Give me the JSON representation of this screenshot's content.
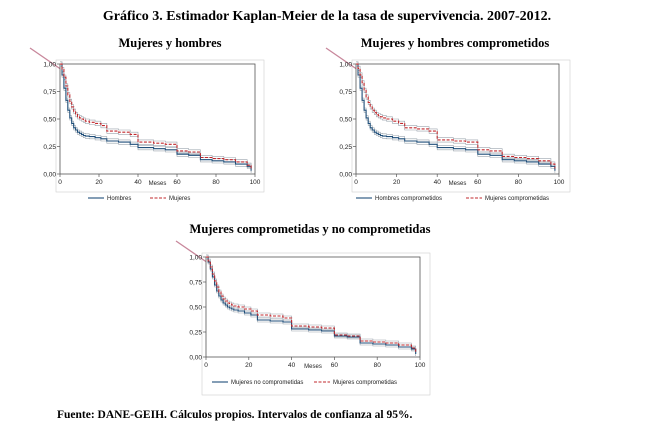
{
  "page": {
    "title": "Gráfico 3. Estimador Kaplan-Meier de la tasa de supervivencia. 2007-2012.",
    "source": "Fuente: DANE-GEIH. Cálculos propios. Intervalos de confianza al 95%."
  },
  "colors": {
    "series1": "#1f4e79",
    "series2": "#c0282d",
    "band": "#9aa4ad",
    "frame": "#555555",
    "arrow": "#c8879b"
  },
  "chart_data": [
    {
      "type": "line",
      "title": "Mujeres y hombres",
      "xlabel": "Meses",
      "ylabel": "",
      "xlim": [
        0,
        100
      ],
      "ylim": [
        0,
        1
      ],
      "xticks": [
        0,
        20,
        40,
        60,
        80,
        100
      ],
      "xtick_labels": [
        "0",
        "20",
        "40",
        "60",
        "80",
        "100"
      ],
      "yticks": [
        0,
        0.25,
        0.5,
        0.75,
        1
      ],
      "ytick_labels": [
        "0,00",
        "0,25",
        "0,50",
        "0,75",
        "1,00"
      ],
      "legend": "bottom",
      "series": [
        {
          "name": "Hombres",
          "style": "solid",
          "x": [
            0,
            1,
            2,
            3,
            4,
            5,
            6,
            7,
            8,
            9,
            10,
            11,
            12,
            13,
            15,
            18,
            21,
            24,
            30,
            36,
            40,
            48,
            54,
            60,
            66,
            72,
            78,
            84,
            90,
            96,
            98
          ],
          "y": [
            1.0,
            0.9,
            0.78,
            0.67,
            0.58,
            0.51,
            0.46,
            0.42,
            0.4,
            0.38,
            0.37,
            0.36,
            0.35,
            0.345,
            0.34,
            0.33,
            0.32,
            0.3,
            0.29,
            0.27,
            0.24,
            0.23,
            0.22,
            0.18,
            0.17,
            0.13,
            0.12,
            0.11,
            0.09,
            0.07,
            0.03
          ]
        },
        {
          "name": "Mujeres",
          "style": "dashed",
          "x": [
            0,
            1,
            2,
            3,
            4,
            5,
            6,
            7,
            8,
            9,
            10,
            11,
            12,
            13,
            15,
            18,
            21,
            24,
            30,
            36,
            40,
            48,
            54,
            60,
            66,
            72,
            78,
            84,
            90,
            96,
            98
          ],
          "y": [
            1.0,
            0.95,
            0.88,
            0.8,
            0.72,
            0.66,
            0.61,
            0.57,
            0.54,
            0.52,
            0.51,
            0.5,
            0.49,
            0.48,
            0.47,
            0.46,
            0.44,
            0.39,
            0.38,
            0.36,
            0.29,
            0.28,
            0.27,
            0.21,
            0.2,
            0.15,
            0.14,
            0.13,
            0.11,
            0.08,
            0.04
          ]
        }
      ]
    },
    {
      "type": "line",
      "title": "Mujeres y hombres comprometidos",
      "xlabel": "Meses",
      "ylabel": "",
      "xlim": [
        0,
        100
      ],
      "ylim": [
        0,
        1
      ],
      "xticks": [
        0,
        20,
        40,
        60,
        80,
        100
      ],
      "xtick_labels": [
        "0",
        "20",
        "40",
        "60",
        "80",
        "100"
      ],
      "yticks": [
        0,
        0.25,
        0.5,
        0.75,
        1
      ],
      "ytick_labels": [
        "0,00",
        "0,25",
        "0,50",
        "0,75",
        "1,00"
      ],
      "legend": "bottom",
      "series": [
        {
          "name": "Hombres comprometidos",
          "style": "solid",
          "x": [
            0,
            1,
            2,
            3,
            4,
            5,
            6,
            7,
            8,
            9,
            10,
            11,
            12,
            13,
            15,
            18,
            21,
            24,
            30,
            36,
            40,
            48,
            54,
            60,
            66,
            72,
            78,
            84,
            90,
            96,
            98
          ],
          "y": [
            1.0,
            0.9,
            0.78,
            0.67,
            0.58,
            0.51,
            0.46,
            0.42,
            0.4,
            0.38,
            0.37,
            0.36,
            0.35,
            0.345,
            0.34,
            0.33,
            0.32,
            0.3,
            0.29,
            0.27,
            0.24,
            0.23,
            0.22,
            0.18,
            0.17,
            0.13,
            0.12,
            0.11,
            0.09,
            0.07,
            0.03
          ]
        },
        {
          "name": "Mujeres comprometidas",
          "style": "dashed",
          "x": [
            0,
            1,
            2,
            3,
            4,
            5,
            6,
            7,
            8,
            9,
            10,
            11,
            12,
            13,
            15,
            18,
            21,
            24,
            30,
            36,
            40,
            48,
            54,
            60,
            66,
            72,
            78,
            84,
            90,
            96,
            98
          ],
          "y": [
            1.0,
            0.96,
            0.9,
            0.83,
            0.76,
            0.7,
            0.65,
            0.61,
            0.58,
            0.56,
            0.54,
            0.53,
            0.52,
            0.51,
            0.5,
            0.48,
            0.46,
            0.42,
            0.41,
            0.39,
            0.31,
            0.3,
            0.29,
            0.22,
            0.21,
            0.16,
            0.15,
            0.14,
            0.12,
            0.09,
            0.05
          ]
        }
      ]
    },
    {
      "type": "line",
      "title": "Mujeres comprometidas y no comprometidas",
      "xlabel": "Meses",
      "ylabel": "",
      "xlim": [
        0,
        100
      ],
      "ylim": [
        0,
        1
      ],
      "xticks": [
        0,
        20,
        40,
        60,
        80,
        100
      ],
      "xtick_labels": [
        "0",
        "20",
        "40",
        "60",
        "80",
        "100"
      ],
      "yticks": [
        0,
        0.25,
        0.5,
        0.75,
        1
      ],
      "ytick_labels": [
        "0,00",
        "0,25",
        "0,50",
        "0,75",
        "1,00"
      ],
      "legend": "bottom",
      "series": [
        {
          "name": "Mujeres no comprometidas",
          "style": "solid",
          "x": [
            0,
            1,
            2,
            3,
            4,
            5,
            6,
            7,
            8,
            9,
            10,
            11,
            12,
            13,
            15,
            18,
            21,
            24,
            30,
            36,
            40,
            48,
            54,
            60,
            66,
            72,
            78,
            84,
            90,
            96,
            98
          ],
          "y": [
            1.0,
            0.95,
            0.88,
            0.8,
            0.72,
            0.66,
            0.61,
            0.57,
            0.54,
            0.52,
            0.5,
            0.49,
            0.48,
            0.47,
            0.46,
            0.44,
            0.42,
            0.37,
            0.36,
            0.35,
            0.28,
            0.27,
            0.26,
            0.21,
            0.2,
            0.14,
            0.13,
            0.12,
            0.1,
            0.08,
            0.03
          ]
        },
        {
          "name": "Mujeres comprometidas",
          "style": "dashed",
          "x": [
            0,
            1,
            2,
            3,
            4,
            5,
            6,
            7,
            8,
            9,
            10,
            11,
            12,
            13,
            15,
            18,
            21,
            24,
            30,
            36,
            40,
            48,
            54,
            60,
            66,
            72,
            78,
            84,
            90,
            96,
            98
          ],
          "y": [
            1.0,
            0.96,
            0.9,
            0.83,
            0.76,
            0.7,
            0.65,
            0.61,
            0.58,
            0.56,
            0.54,
            0.53,
            0.52,
            0.51,
            0.5,
            0.48,
            0.46,
            0.42,
            0.41,
            0.39,
            0.31,
            0.3,
            0.29,
            0.22,
            0.21,
            0.16,
            0.15,
            0.14,
            0.12,
            0.09,
            0.05
          ]
        }
      ]
    }
  ]
}
